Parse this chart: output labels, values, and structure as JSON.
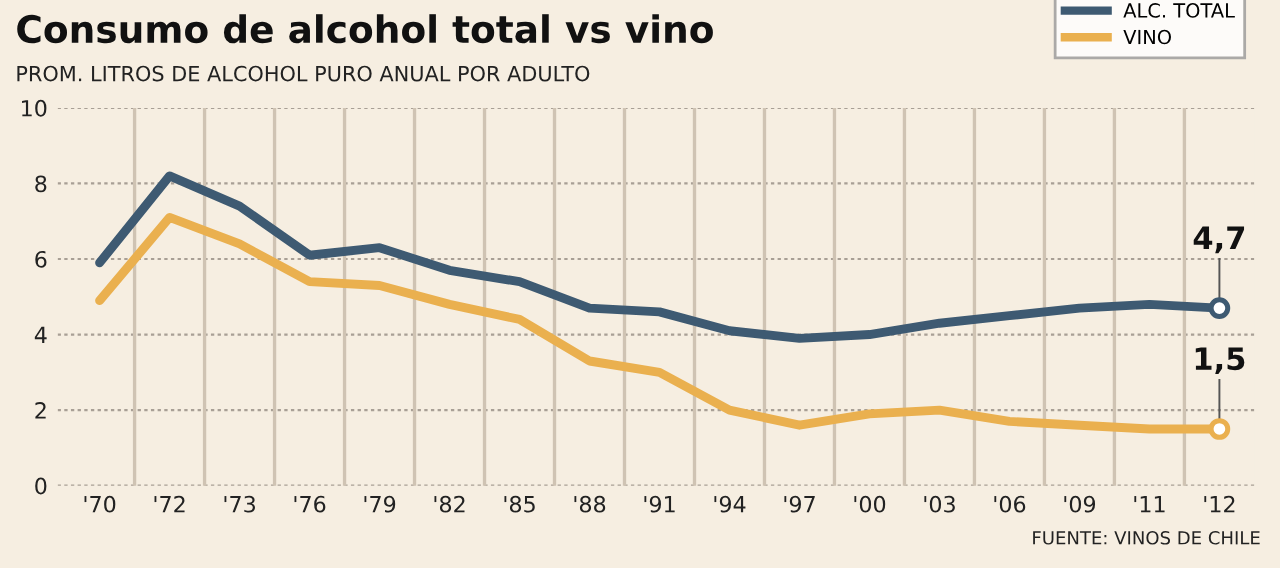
{
  "chart_data": {
    "type": "line",
    "title": "Consumo de alcohol total vs vino",
    "subtitle": "PROM. LITROS DE ALCOHOL PURO ANUAL POR ADULTO",
    "categories": [
      "'70",
      "'72",
      "'73",
      "'76",
      "'79",
      "'82",
      "'85",
      "'88",
      "'91",
      "'94",
      "'97",
      "'00",
      "'03",
      "'06",
      "'09",
      "'11",
      "'12"
    ],
    "series": [
      {
        "name": "ALC. TOTAL",
        "color": "#3e5a72",
        "values": [
          5.9,
          8.2,
          7.4,
          6.1,
          6.3,
          5.7,
          5.4,
          4.7,
          4.6,
          4.1,
          3.9,
          4.0,
          4.3,
          4.5,
          4.7,
          4.8,
          4.7
        ],
        "value_labels": [
          null,
          null,
          null,
          null,
          null,
          null,
          null,
          null,
          null,
          null,
          null,
          null,
          null,
          null,
          null,
          null,
          "4,7"
        ]
      },
      {
        "name": "VINO",
        "color": "#eab04f",
        "values": [
          4.9,
          7.1,
          6.4,
          5.4,
          5.3,
          4.8,
          4.4,
          3.3,
          3.0,
          2.0,
          1.6,
          1.9,
          2.0,
          1.7,
          1.6,
          1.5,
          1.5
        ],
        "value_labels": [
          null,
          null,
          null,
          null,
          null,
          null,
          null,
          null,
          null,
          null,
          null,
          null,
          null,
          null,
          null,
          null,
          "1,5"
        ]
      }
    ],
    "ylim": [
      0,
      10
    ],
    "yticks": [
      0,
      2,
      4,
      6,
      8,
      10
    ],
    "grid": true,
    "legend": "top right",
    "annotations": [
      "FUENTE: VINOS DE CHILE"
    ]
  }
}
